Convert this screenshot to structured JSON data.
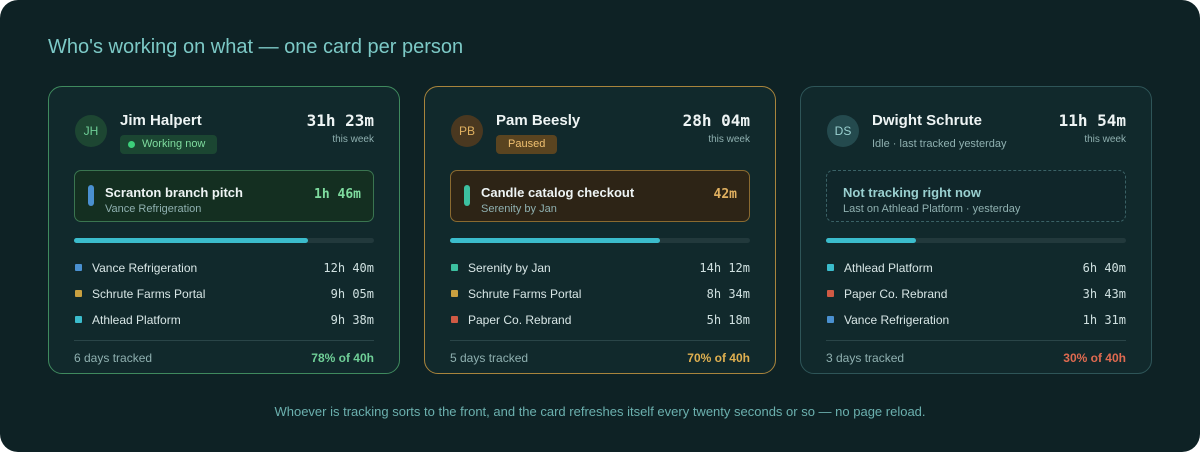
{
  "title": "Who's working on what — one card per person",
  "cards": [
    {
      "initials": "JH",
      "name": "Jim Halpert",
      "status": "Working now",
      "hours": "31h 23m",
      "hours_label": "this week",
      "task": {
        "title": "Scranton branch pitch",
        "client": "Vance Refrigeration",
        "time": "1h 46m"
      },
      "projects": [
        {
          "name": "Vance Refrigeration",
          "time": "12h 40m"
        },
        {
          "name": "Schrute Farms Portal",
          "time": "9h 05m"
        },
        {
          "name": "Athlead Platform",
          "time": "9h 38m"
        }
      ],
      "days": "6 days tracked",
      "progress": "78% of 40h"
    },
    {
      "initials": "PB",
      "name": "Pam Beesly",
      "status": "Paused",
      "hours": "28h 04m",
      "hours_label": "this week",
      "task": {
        "title": "Candle catalog checkout",
        "client": "Serenity by Jan",
        "time": "42m"
      },
      "projects": [
        {
          "name": "Serenity by Jan",
          "time": "14h 12m"
        },
        {
          "name": "Schrute Farms Portal",
          "time": "8h 34m"
        },
        {
          "name": "Paper Co. Rebrand",
          "time": "5h 18m"
        }
      ],
      "days": "5 days tracked",
      "progress": "70% of 40h"
    },
    {
      "initials": "DS",
      "name": "Dwight Schrute",
      "status": "Idle · last tracked yesterday",
      "hours": "11h 54m",
      "hours_label": "this week",
      "task": {
        "title": "Not tracking right now",
        "client": "Last on Athlead Platform · yesterday"
      },
      "projects": [
        {
          "name": "Athlead Platform",
          "time": "6h 40m"
        },
        {
          "name": "Paper Co. Rebrand",
          "time": "3h 43m"
        },
        {
          "name": "Vance Refrigeration",
          "time": "1h 31m"
        }
      ],
      "days": "3 days tracked",
      "progress": "30% of 40h"
    }
  ],
  "footer": "Whoever is tracking sorts to the front, and the card refreshes itself every twenty seconds or so — no page reload."
}
